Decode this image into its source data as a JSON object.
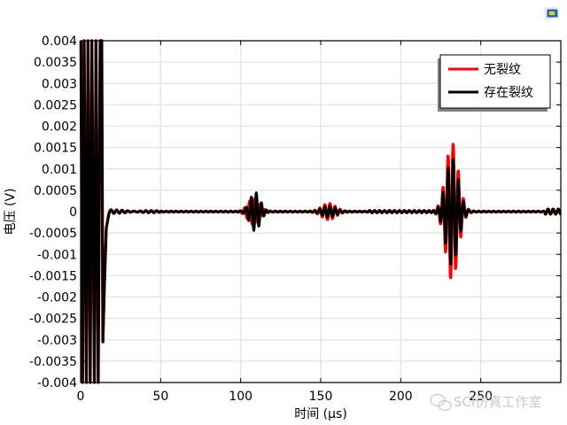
{
  "chart_data": {
    "type": "line",
    "title": "",
    "xlabel": "时间 (µs)",
    "ylabel": "电压 (V)",
    "xlim": [
      0,
      300
    ],
    "ylim": [
      -0.004,
      0.004
    ],
    "x_ticks": [
      0,
      50,
      100,
      150,
      200,
      250
    ],
    "x_tick_labels": [
      "0",
      "50",
      "100",
      "150",
      "200",
      "250"
    ],
    "y_ticks": [
      0.004,
      0.0035,
      0.003,
      0.0025,
      0.002,
      0.0015,
      0.001,
      0.0005,
      0,
      -0.0005,
      -0.001,
      -0.0015,
      -0.002,
      -0.0025,
      -0.003,
      -0.0035,
      -0.004
    ],
    "y_tick_labels": [
      "0.004",
      "0.0035",
      "0.003",
      "0.0025",
      "0.002",
      "0.0015",
      "0.001",
      "0.0005",
      "0",
      "-0.0005",
      "-0.001",
      "-0.0015",
      "-0.002",
      "-0.0025",
      "-0.003",
      "-0.0035",
      "-0.004"
    ],
    "grid": true,
    "legend_position": "upper right",
    "series": [
      {
        "name": "无裂纹",
        "color": "#ff0000",
        "description": "No-crack signal: excitation saturates axis 0-13 µs, decays from -0.003 at ~14 µs, small direct packet ~108 µs, packet ~155 µs, large echo ~232 µs (peak ≈ +0.0016 / -0.0016)",
        "packets": [
          {
            "center_us": 108,
            "amplitude": 0.0003,
            "width_us": 5,
            "period_us": 3.2
          },
          {
            "center_us": 155,
            "amplitude": 0.00018,
            "width_us": 6,
            "period_us": 3.2
          },
          {
            "center_us": 232,
            "amplitude": 0.0016,
            "width_us": 5.5,
            "period_us": 3.2
          }
        ]
      },
      {
        "name": "存在裂纹",
        "color": "#000000",
        "description": "With-crack signal: same excitation, stronger packet ~109 µs (≈ ±0.0004), smaller packet ~155 µs, echo ~232 µs (peak ≈ +0.0013 / -0.0013)",
        "packets": [
          {
            "center_us": 109,
            "amplitude": 0.00045,
            "width_us": 4.5,
            "period_us": 3.2
          },
          {
            "center_us": 155,
            "amplitude": 0.00012,
            "width_us": 6,
            "period_us": 3.2
          },
          {
            "center_us": 232,
            "amplitude": 0.00125,
            "width_us": 5.5,
            "period_us": 3.2
          }
        ]
      }
    ],
    "annotations": [
      "excitation pulse clipped at ±0.004 for t < 14 µs",
      "min ≈ -0.003 at t ≈ 14 µs"
    ]
  },
  "legend": {
    "items": [
      {
        "label": "无裂纹",
        "color": "#ff0000"
      },
      {
        "label": "存在裂纹",
        "color": "#000000"
      }
    ]
  },
  "watermark": {
    "text": "SCI仿真工作室"
  }
}
